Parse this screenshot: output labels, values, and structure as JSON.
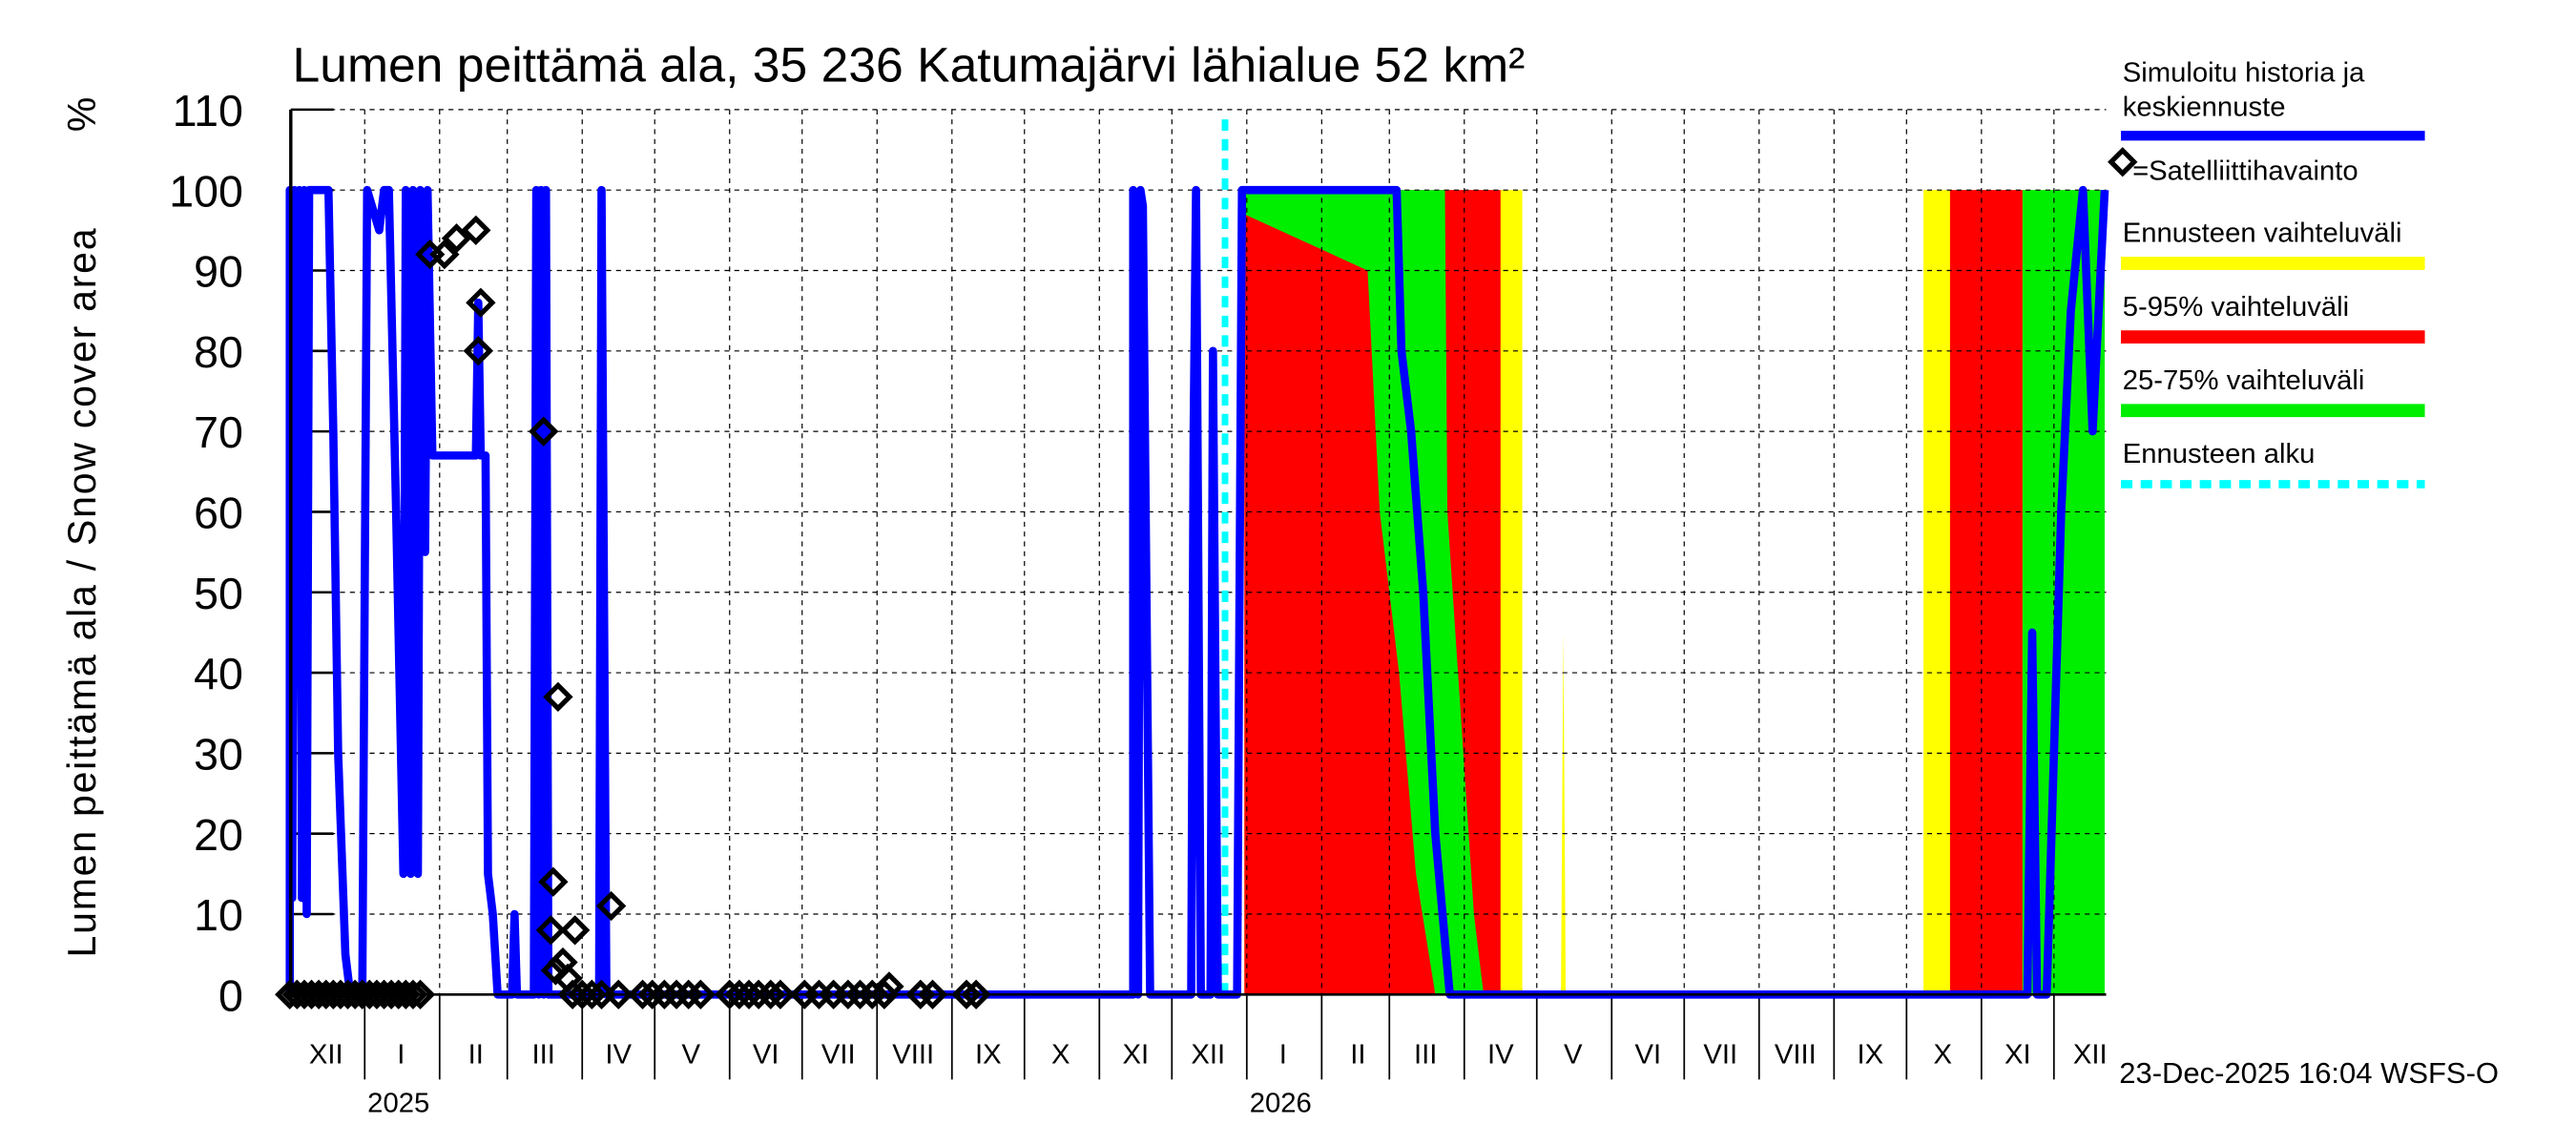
{
  "chart_data": {
    "type": "area",
    "title": "Lumen peittämä ala, 35 236 Katumajärvi lähialue 52 km²",
    "ylabel": "Lumen peittämä ala / Snow cover area",
    "yunit": "%",
    "ylim": [
      0,
      110
    ],
    "yticks": [
      0,
      10,
      20,
      30,
      40,
      50,
      60,
      70,
      80,
      90,
      100,
      110
    ],
    "xlim": [
      "2024-12-01",
      "2026-12-22"
    ],
    "grid": true,
    "legend_position": "right",
    "month_labels": [
      "XII",
      "I",
      "II",
      "III",
      "IV",
      "V",
      "VI",
      "VII",
      "VIII",
      "IX",
      "X",
      "XI",
      "XII",
      "I",
      "II",
      "III",
      "IV",
      "V",
      "VI",
      "VII",
      "VIII",
      "IX",
      "X",
      "XI",
      "XII"
    ],
    "year_labels": [
      {
        "label": "2025",
        "date": "2025-01-15"
      },
      {
        "label": "2026",
        "date": "2026-01-15"
      }
    ],
    "timestamp": "23-Dec-2025 16:04 WSFS-O",
    "forecast_start": "2025-12-23",
    "colors": {
      "median": "#0000ff",
      "range": "#ffff00",
      "p5_95": "#ff0000",
      "p25_75": "#00ee00",
      "forecast_start": "#00ffff",
      "observation": "#000000"
    },
    "legend": {
      "median": "Simuloitu historia ja keskiennuste",
      "median_line1": "Simuloitu historia ja",
      "median_line2": "keskiennuste",
      "observation": "=Satelliittihavainto",
      "range": "Ennusteen vaihteluväli",
      "p5_95": "5-95% vaihteluväli",
      "p25_75": "25-75% vaihteluväli",
      "forecast_start": "Ennusteen alku"
    },
    "bands": {
      "range": [
        [
          [
            "2025-12-31",
            0,
            100
          ],
          [
            "2026-04-25",
            0,
            100
          ]
        ],
        [
          [
            "2026-05-11",
            0,
            0
          ],
          [
            "2026-05-12",
            0,
            45
          ],
          [
            "2026-05-13",
            0,
            0
          ]
        ],
        [
          [
            "2026-10-08",
            0,
            100
          ],
          [
            "2026-12-22",
            0,
            100
          ]
        ]
      ],
      "p5_95": [
        [
          [
            "2025-12-31",
            0,
            100
          ],
          [
            "2026-04-16",
            0,
            100
          ]
        ],
        [
          [
            "2026-10-19",
            0,
            100
          ],
          [
            "2026-11-18",
            0,
            100
          ]
        ]
      ],
      "p25_75": [
        [
          [
            "2025-12-31",
            97,
            100
          ],
          [
            "2026-02-20",
            90,
            100
          ],
          [
            "2026-02-25",
            60,
            100
          ],
          [
            "2026-03-05",
            40,
            100
          ],
          [
            "2026-03-12",
            15,
            100
          ],
          [
            "2026-03-20",
            0,
            100
          ],
          [
            "2026-03-24",
            0,
            100
          ],
          [
            "2026-03-25",
            0,
            60
          ],
          [
            "2026-04-05",
            0,
            10
          ],
          [
            "2026-04-09",
            0,
            0
          ]
        ],
        [
          [
            "2026-11-18",
            0,
            100
          ],
          [
            "2026-12-22",
            0,
            100
          ]
        ]
      ]
    },
    "median": [
      [
        "2024-12-01",
        0
      ],
      [
        "2024-12-01",
        100
      ],
      [
        "2024-12-02",
        12
      ],
      [
        "2024-12-03",
        100
      ],
      [
        "2024-12-04",
        40
      ],
      [
        "2024-12-05",
        100
      ],
      [
        "2024-12-06",
        12
      ],
      [
        "2024-12-07",
        100
      ],
      [
        "2024-12-08",
        10
      ],
      [
        "2024-12-09",
        100
      ],
      [
        "2024-12-15",
        100
      ],
      [
        "2024-12-17",
        100
      ],
      [
        "2024-12-19",
        70
      ],
      [
        "2024-12-21",
        30
      ],
      [
        "2024-12-24",
        5
      ],
      [
        "2024-12-26",
        0
      ],
      [
        "2024-12-31",
        0
      ],
      [
        "2025-01-02",
        100
      ],
      [
        "2025-01-07",
        95
      ],
      [
        "2025-01-09",
        100
      ],
      [
        "2025-01-11",
        100
      ],
      [
        "2025-01-14",
        60
      ],
      [
        "2025-01-17",
        15
      ],
      [
        "2025-01-18",
        100
      ],
      [
        "2025-01-20",
        15
      ],
      [
        "2025-01-21",
        100
      ],
      [
        "2025-01-23",
        15
      ],
      [
        "2025-01-24",
        100
      ],
      [
        "2025-01-26",
        55
      ],
      [
        "2025-01-27",
        100
      ],
      [
        "2025-01-29",
        67
      ],
      [
        "2025-02-16",
        67
      ],
      [
        "2025-02-17",
        86
      ],
      [
        "2025-02-18",
        67
      ],
      [
        "2025-02-20",
        67
      ],
      [
        "2025-02-21",
        15
      ],
      [
        "2025-02-23",
        10
      ],
      [
        "2025-02-25",
        0
      ],
      [
        "2025-03-03",
        0
      ],
      [
        "2025-03-04",
        10
      ],
      [
        "2025-03-05",
        0
      ],
      [
        "2025-03-12",
        0
      ],
      [
        "2025-03-13",
        100
      ],
      [
        "2025-03-14",
        0
      ],
      [
        "2025-03-15",
        100
      ],
      [
        "2025-03-16",
        0
      ],
      [
        "2025-03-17",
        100
      ],
      [
        "2025-03-18",
        0
      ],
      [
        "2025-04-08",
        0
      ],
      [
        "2025-04-09",
        100
      ],
      [
        "2025-04-11",
        0
      ],
      [
        "2025-11-15",
        0
      ],
      [
        "2025-11-15",
        100
      ],
      [
        "2025-11-17",
        0
      ],
      [
        "2025-11-18",
        100
      ],
      [
        "2025-11-19",
        98
      ],
      [
        "2025-11-22",
        0
      ],
      [
        "2025-12-09",
        0
      ],
      [
        "2025-12-10",
        70
      ],
      [
        "2025-12-11",
        100
      ],
      [
        "2025-12-13",
        0
      ],
      [
        "2025-12-17",
        0
      ],
      [
        "2025-12-18",
        80
      ],
      [
        "2025-12-20",
        0
      ],
      [
        "2025-12-28",
        0
      ],
      [
        "2025-12-30",
        100
      ],
      [
        "2026-03-04",
        100
      ],
      [
        "2026-03-06",
        80
      ],
      [
        "2026-03-10",
        70
      ],
      [
        "2026-03-15",
        50
      ],
      [
        "2026-03-20",
        20
      ],
      [
        "2026-03-26",
        0
      ],
      [
        "2026-11-20",
        0
      ],
      [
        "2026-11-22",
        45
      ],
      [
        "2026-11-24",
        0
      ],
      [
        "2026-11-28",
        0
      ],
      [
        "2026-11-30",
        20
      ],
      [
        "2026-12-04",
        60
      ],
      [
        "2026-12-08",
        85
      ],
      [
        "2026-12-13",
        100
      ],
      [
        "2026-12-17",
        70
      ],
      [
        "2026-12-22",
        100
      ]
    ],
    "observations": [
      [
        "2024-12-01",
        0
      ],
      [
        "2024-12-04",
        0
      ],
      [
        "2024-12-07",
        0
      ],
      [
        "2024-12-10",
        0
      ],
      [
        "2024-12-13",
        0
      ],
      [
        "2024-12-16",
        0
      ],
      [
        "2024-12-19",
        0
      ],
      [
        "2024-12-22",
        0
      ],
      [
        "2024-12-25",
        0
      ],
      [
        "2024-12-28",
        0
      ],
      [
        "2024-12-31",
        0
      ],
      [
        "2025-01-03",
        0
      ],
      [
        "2025-01-06",
        0
      ],
      [
        "2025-01-09",
        0
      ],
      [
        "2025-01-12",
        0
      ],
      [
        "2025-01-15",
        0
      ],
      [
        "2025-01-18",
        0
      ],
      [
        "2025-01-21",
        0
      ],
      [
        "2025-01-24",
        0
      ],
      [
        "2025-01-28",
        92
      ],
      [
        "2025-02-03",
        92
      ],
      [
        "2025-02-08",
        94
      ],
      [
        "2025-02-16",
        95
      ],
      [
        "2025-02-18",
        86
      ],
      [
        "2025-02-17",
        80
      ],
      [
        "2025-03-16",
        70
      ],
      [
        "2025-03-19",
        8
      ],
      [
        "2025-03-20",
        14
      ],
      [
        "2025-03-21",
        3
      ],
      [
        "2025-03-22",
        37
      ],
      [
        "2025-03-24",
        4
      ],
      [
        "2025-03-26",
        2
      ],
      [
        "2025-03-29",
        8
      ],
      [
        "2025-04-13",
        11
      ],
      [
        "2025-03-28",
        0
      ],
      [
        "2025-04-01",
        0
      ],
      [
        "2025-04-05",
        0
      ],
      [
        "2025-04-09",
        0
      ],
      [
        "2025-04-16",
        0
      ],
      [
        "2025-04-26",
        0
      ],
      [
        "2025-04-30",
        0
      ],
      [
        "2025-05-05",
        0
      ],
      [
        "2025-05-10",
        0
      ],
      [
        "2025-05-15",
        0
      ],
      [
        "2025-05-20",
        0
      ],
      [
        "2025-06-01",
        0
      ],
      [
        "2025-06-05",
        0
      ],
      [
        "2025-06-09",
        0
      ],
      [
        "2025-06-13",
        0
      ],
      [
        "2025-06-18",
        0
      ],
      [
        "2025-06-22",
        0
      ],
      [
        "2025-07-02",
        0
      ],
      [
        "2025-07-08",
        0
      ],
      [
        "2025-07-14",
        0
      ],
      [
        "2025-07-20",
        0
      ],
      [
        "2025-07-25",
        0
      ],
      [
        "2025-07-30",
        0
      ],
      [
        "2025-08-04",
        0
      ],
      [
        "2025-08-06",
        1
      ],
      [
        "2025-08-19",
        0
      ],
      [
        "2025-08-24",
        0
      ],
      [
        "2025-09-07",
        0
      ],
      [
        "2025-09-11",
        0
      ]
    ]
  }
}
